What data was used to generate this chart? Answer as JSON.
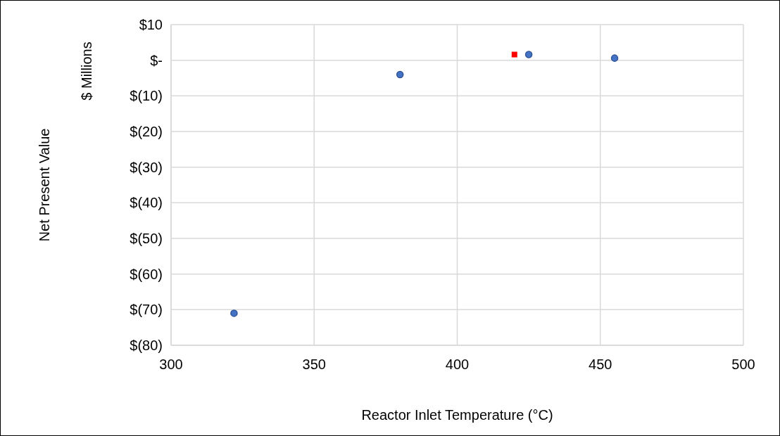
{
  "chart_data": {
    "type": "scatter",
    "xlabel": "Reactor Inlet Temperature (°C)",
    "annotations": [
      "Net Present Value",
      "$ Millions"
    ],
    "series": [
      {
        "color": "#4472c4",
        "marker": "circle",
        "x": [
          322,
          380,
          425,
          455
        ],
        "values": [
          -71,
          -4,
          1.6,
          0.6
        ]
      },
      {
        "color": "#ff0000",
        "marker": "square",
        "x": [
          420
        ],
        "values": [
          1.6
        ]
      }
    ],
    "xlim": [
      300,
      500
    ],
    "xticks": [
      300,
      350,
      400,
      450,
      500
    ],
    "ylim": [
      -80,
      10
    ],
    "yticks": [
      {
        "value": 10,
        "label": "$10"
      },
      {
        "value": 0,
        "label": "$-"
      },
      {
        "value": -10,
        "label": "$(10)"
      },
      {
        "value": -20,
        "label": "$(20)"
      },
      {
        "value": -30,
        "label": "$(30)"
      },
      {
        "value": -40,
        "label": "$(40)"
      },
      {
        "value": -50,
        "label": "$(50)"
      },
      {
        "value": -60,
        "label": "$(60)"
      },
      {
        "value": -70,
        "label": "$(70)"
      },
      {
        "value": -80,
        "label": "$(80)"
      }
    ],
    "grid": true
  }
}
